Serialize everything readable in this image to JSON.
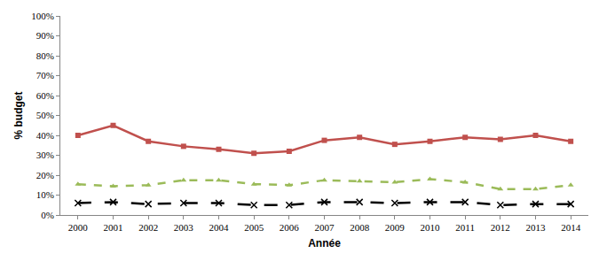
{
  "chart_data": {
    "type": "line",
    "x_label": "Année",
    "y_label": "% budget",
    "categories": [
      "2000",
      "2001",
      "2002",
      "2003",
      "2004",
      "2005",
      "2006",
      "2007",
      "2008",
      "2009",
      "2010",
      "2011",
      "2012",
      "2013",
      "2014"
    ],
    "series": [
      {
        "color": "#C0504D",
        "marker": "square",
        "line_style": "solid",
        "values": [
          40,
          45,
          37,
          34.5,
          33,
          31,
          32,
          37.5,
          39,
          35.5,
          37,
          39,
          38,
          40,
          37
        ]
      },
      {
        "color": "#9BBB59",
        "marker": "triangle",
        "line_style": "dash",
        "values": [
          15.5,
          14.5,
          15,
          17.5,
          17.5,
          15.5,
          15,
          17.5,
          17,
          16.5,
          18,
          16.5,
          13,
          13,
          15
        ]
      },
      {
        "color": "#000000",
        "marker": "x",
        "line_style": "longdash",
        "values": [
          6,
          6.5,
          5.5,
          6,
          6,
          5,
          5,
          6.5,
          6.5,
          6,
          6.5,
          6.5,
          5,
          5.5,
          5.5
        ]
      }
    ],
    "ylim": [
      0,
      100
    ],
    "yticks": [
      {
        "value": 0,
        "label": "0%"
      },
      {
        "value": 10,
        "label": "10%"
      },
      {
        "value": 20,
        "label": "20%"
      },
      {
        "value": 30,
        "label": "30%"
      },
      {
        "value": 40,
        "label": "40%"
      },
      {
        "value": 50,
        "label": "50%"
      },
      {
        "value": 60,
        "label": "60%"
      },
      {
        "value": 70,
        "label": "70%"
      },
      {
        "value": 80,
        "label": "80%"
      },
      {
        "value": 90,
        "label": "90%"
      },
      {
        "value": 100,
        "label": "100%"
      }
    ],
    "grid": false
  }
}
